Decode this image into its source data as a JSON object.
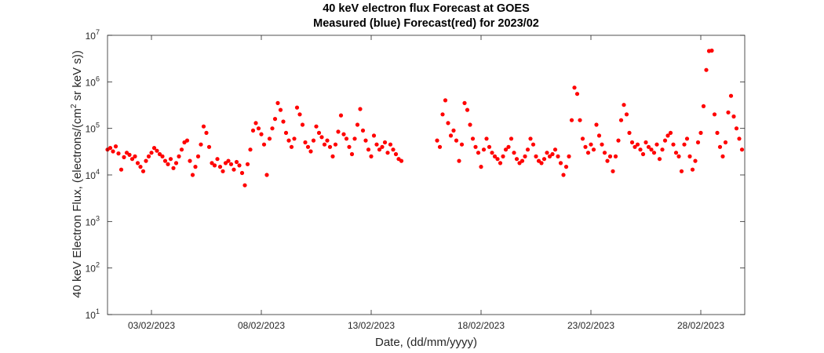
{
  "chart_data": {
    "type": "scatter",
    "title": "40 keV electron flux Forecast at GOES",
    "subtitle": "Measured (blue) Forecast(red) for 2023/02",
    "xlabel": "Date, (dd/mm/yyyy)",
    "ylabel_main": "40 keV Electron Flux, (electrons/(cm",
    "ylabel_sup": "2",
    "ylabel_end": " sr keV s))",
    "y_scale": "log",
    "ylim": [
      10,
      10000000
    ],
    "xlim": [
      "2023-02-01",
      "2023-03-02"
    ],
    "grid": false,
    "x_ticks": [
      {
        "date": "2023-02-03",
        "label": "03/02/2023"
      },
      {
        "date": "2023-02-08",
        "label": "08/02/2023"
      },
      {
        "date": "2023-02-13",
        "label": "13/02/2023"
      },
      {
        "date": "2023-02-18",
        "label": "18/02/2023"
      },
      {
        "date": "2023-02-23",
        "label": "23/02/2023"
      },
      {
        "date": "2023-02-28",
        "label": "28/02/2023"
      }
    ],
    "y_ticks": [
      {
        "value": 10,
        "base": "10",
        "exp": "1"
      },
      {
        "value": 100,
        "base": "10",
        "exp": "2"
      },
      {
        "value": 1000,
        "base": "10",
        "exp": "3"
      },
      {
        "value": 10000,
        "base": "10",
        "exp": "4"
      },
      {
        "value": 100000,
        "base": "10",
        "exp": "5"
      },
      {
        "value": 1000000,
        "base": "10",
        "exp": "6"
      },
      {
        "value": 10000000,
        "base": "10",
        "exp": "7"
      }
    ],
    "series": [
      {
        "color": "#ff0000",
        "points": [
          [
            "2023-02-01 00:00",
            35000
          ],
          [
            "2023-02-01 03:00",
            38000
          ],
          [
            "2023-02-01 06:00",
            32000
          ],
          [
            "2023-02-01 09:00",
            41000
          ],
          [
            "2023-02-01 12:00",
            29000
          ],
          [
            "2023-02-01 15:00",
            13000
          ],
          [
            "2023-02-01 18:00",
            24000
          ],
          [
            "2023-02-01 21:00",
            30000
          ],
          [
            "2023-02-02 00:00",
            27000
          ],
          [
            "2023-02-02 03:00",
            22000
          ],
          [
            "2023-02-02 06:00",
            25000
          ],
          [
            "2023-02-02 09:00",
            18000
          ],
          [
            "2023-02-02 12:00",
            15000
          ],
          [
            "2023-02-02 15:00",
            12000
          ],
          [
            "2023-02-02 18:00",
            20000
          ],
          [
            "2023-02-02 21:00",
            25000
          ],
          [
            "2023-02-03 00:00",
            30000
          ],
          [
            "2023-02-03 03:00",
            38000
          ],
          [
            "2023-02-03 06:00",
            33000
          ],
          [
            "2023-02-03 09:00",
            28000
          ],
          [
            "2023-02-03 12:00",
            25000
          ],
          [
            "2023-02-03 15:00",
            20000
          ],
          [
            "2023-02-03 18:00",
            17000
          ],
          [
            "2023-02-03 21:00",
            22000
          ],
          [
            "2023-02-04 00:00",
            14000
          ],
          [
            "2023-02-04 03:00",
            18000
          ],
          [
            "2023-02-04 06:00",
            25000
          ],
          [
            "2023-02-04 09:00",
            35000
          ],
          [
            "2023-02-04 12:00",
            50000
          ],
          [
            "2023-02-04 15:00",
            55000
          ],
          [
            "2023-02-04 18:00",
            20000
          ],
          [
            "2023-02-04 21:00",
            10000
          ],
          [
            "2023-02-05 00:00",
            15000
          ],
          [
            "2023-02-05 03:00",
            25000
          ],
          [
            "2023-02-05 06:00",
            45000
          ],
          [
            "2023-02-05 09:00",
            110000
          ],
          [
            "2023-02-05 12:00",
            80000
          ],
          [
            "2023-02-05 15:00",
            40000
          ],
          [
            "2023-02-05 18:00",
            18000
          ],
          [
            "2023-02-05 21:00",
            16000
          ],
          [
            "2023-02-06 00:00",
            22000
          ],
          [
            "2023-02-06 03:00",
            15000
          ],
          [
            "2023-02-06 06:00",
            12000
          ],
          [
            "2023-02-06 09:00",
            18000
          ],
          [
            "2023-02-06 12:00",
            20000
          ],
          [
            "2023-02-06 15:00",
            17000
          ],
          [
            "2023-02-06 18:00",
            13000
          ],
          [
            "2023-02-06 21:00",
            19000
          ],
          [
            "2023-02-07 00:00",
            16000
          ],
          [
            "2023-02-07 03:00",
            11000
          ],
          [
            "2023-02-07 06:00",
            6000
          ],
          [
            "2023-02-07 09:00",
            17000
          ],
          [
            "2023-02-07 12:00",
            35000
          ],
          [
            "2023-02-07 15:00",
            90000
          ],
          [
            "2023-02-07 18:00",
            130000
          ],
          [
            "2023-02-07 21:00",
            100000
          ],
          [
            "2023-02-08 00:00",
            75000
          ],
          [
            "2023-02-08 03:00",
            45000
          ],
          [
            "2023-02-08 06:00",
            10000
          ],
          [
            "2023-02-08 09:00",
            60000
          ],
          [
            "2023-02-08 12:00",
            100000
          ],
          [
            "2023-02-08 15:00",
            160000
          ],
          [
            "2023-02-08 18:00",
            350000
          ],
          [
            "2023-02-08 21:00",
            250000
          ],
          [
            "2023-02-09 00:00",
            140000
          ],
          [
            "2023-02-09 03:00",
            80000
          ],
          [
            "2023-02-09 06:00",
            55000
          ],
          [
            "2023-02-09 09:00",
            40000
          ],
          [
            "2023-02-09 12:00",
            60000
          ],
          [
            "2023-02-09 15:00",
            280000
          ],
          [
            "2023-02-09 18:00",
            200000
          ],
          [
            "2023-02-09 21:00",
            120000
          ],
          [
            "2023-02-10 00:00",
            50000
          ],
          [
            "2023-02-10 03:00",
            40000
          ],
          [
            "2023-02-10 06:00",
            32000
          ],
          [
            "2023-02-10 09:00",
            55000
          ],
          [
            "2023-02-10 12:00",
            110000
          ],
          [
            "2023-02-10 15:00",
            80000
          ],
          [
            "2023-02-10 18:00",
            65000
          ],
          [
            "2023-02-10 21:00",
            45000
          ],
          [
            "2023-02-11 00:00",
            55000
          ],
          [
            "2023-02-11 03:00",
            40000
          ],
          [
            "2023-02-11 06:00",
            25000
          ],
          [
            "2023-02-11 09:00",
            45000
          ],
          [
            "2023-02-11 12:00",
            85000
          ],
          [
            "2023-02-11 15:00",
            190000
          ],
          [
            "2023-02-11 18:00",
            75000
          ],
          [
            "2023-02-11 21:00",
            60000
          ],
          [
            "2023-02-12 00:00",
            40000
          ],
          [
            "2023-02-12 03:00",
            28000
          ],
          [
            "2023-02-12 06:00",
            60000
          ],
          [
            "2023-02-12 09:00",
            120000
          ],
          [
            "2023-02-12 12:00",
            260000
          ],
          [
            "2023-02-12 15:00",
            90000
          ],
          [
            "2023-02-12 18:00",
            55000
          ],
          [
            "2023-02-12 21:00",
            35000
          ],
          [
            "2023-02-13 00:00",
            25000
          ],
          [
            "2023-02-13 03:00",
            70000
          ],
          [
            "2023-02-13 06:00",
            45000
          ],
          [
            "2023-02-13 09:00",
            35000
          ],
          [
            "2023-02-13 12:00",
            40000
          ],
          [
            "2023-02-13 15:00",
            50000
          ],
          [
            "2023-02-13 18:00",
            30000
          ],
          [
            "2023-02-13 21:00",
            45000
          ],
          [
            "2023-02-14 00:00",
            35000
          ],
          [
            "2023-02-14 03:00",
            28000
          ],
          [
            "2023-02-14 06:00",
            22000
          ],
          [
            "2023-02-14 09:00",
            20000
          ],
          [
            "2023-02-16 00:00",
            55000
          ],
          [
            "2023-02-16 03:00",
            40000
          ],
          [
            "2023-02-16 06:00",
            200000
          ],
          [
            "2023-02-16 09:00",
            400000
          ],
          [
            "2023-02-16 12:00",
            130000
          ],
          [
            "2023-02-16 15:00",
            70000
          ],
          [
            "2023-02-16 18:00",
            90000
          ],
          [
            "2023-02-16 21:00",
            55000
          ],
          [
            "2023-02-17 00:00",
            20000
          ],
          [
            "2023-02-17 03:00",
            45000
          ],
          [
            "2023-02-17 06:00",
            350000
          ],
          [
            "2023-02-17 09:00",
            250000
          ],
          [
            "2023-02-17 12:00",
            120000
          ],
          [
            "2023-02-17 15:00",
            60000
          ],
          [
            "2023-02-17 18:00",
            40000
          ],
          [
            "2023-02-17 21:00",
            30000
          ],
          [
            "2023-02-18 00:00",
            15000
          ],
          [
            "2023-02-18 03:00",
            35000
          ],
          [
            "2023-02-18 06:00",
            60000
          ],
          [
            "2023-02-18 09:00",
            40000
          ],
          [
            "2023-02-18 12:00",
            30000
          ],
          [
            "2023-02-18 15:00",
            25000
          ],
          [
            "2023-02-18 18:00",
            22000
          ],
          [
            "2023-02-18 21:00",
            18000
          ],
          [
            "2023-02-19 00:00",
            25000
          ],
          [
            "2023-02-19 03:00",
            35000
          ],
          [
            "2023-02-19 06:00",
            40000
          ],
          [
            "2023-02-19 09:00",
            60000
          ],
          [
            "2023-02-19 12:00",
            30000
          ],
          [
            "2023-02-19 15:00",
            22000
          ],
          [
            "2023-02-19 18:00",
            18000
          ],
          [
            "2023-02-19 21:00",
            20000
          ],
          [
            "2023-02-20 00:00",
            25000
          ],
          [
            "2023-02-20 03:00",
            35000
          ],
          [
            "2023-02-20 06:00",
            60000
          ],
          [
            "2023-02-20 09:00",
            45000
          ],
          [
            "2023-02-20 12:00",
            25000
          ],
          [
            "2023-02-20 15:00",
            20000
          ],
          [
            "2023-02-20 18:00",
            18000
          ],
          [
            "2023-02-20 21:00",
            22000
          ],
          [
            "2023-02-21 00:00",
            30000
          ],
          [
            "2023-02-21 03:00",
            25000
          ],
          [
            "2023-02-21 06:00",
            28000
          ],
          [
            "2023-02-21 09:00",
            35000
          ],
          [
            "2023-02-21 12:00",
            25000
          ],
          [
            "2023-02-21 15:00",
            18000
          ],
          [
            "2023-02-21 18:00",
            10000
          ],
          [
            "2023-02-21 21:00",
            15000
          ],
          [
            "2023-02-22 00:00",
            25000
          ],
          [
            "2023-02-22 03:00",
            150000
          ],
          [
            "2023-02-22 06:00",
            750000
          ],
          [
            "2023-02-22 09:00",
            550000
          ],
          [
            "2023-02-22 12:00",
            150000
          ],
          [
            "2023-02-22 15:00",
            60000
          ],
          [
            "2023-02-22 18:00",
            40000
          ],
          [
            "2023-02-22 21:00",
            30000
          ],
          [
            "2023-02-23 00:00",
            45000
          ],
          [
            "2023-02-23 03:00",
            35000
          ],
          [
            "2023-02-23 06:00",
            120000
          ],
          [
            "2023-02-23 09:00",
            70000
          ],
          [
            "2023-02-23 12:00",
            45000
          ],
          [
            "2023-02-23 15:00",
            30000
          ],
          [
            "2023-02-23 18:00",
            20000
          ],
          [
            "2023-02-23 21:00",
            25000
          ],
          [
            "2023-02-24 00:00",
            12000
          ],
          [
            "2023-02-24 03:00",
            25000
          ],
          [
            "2023-02-24 06:00",
            55000
          ],
          [
            "2023-02-24 09:00",
            150000
          ],
          [
            "2023-02-24 12:00",
            320000
          ],
          [
            "2023-02-24 15:00",
            200000
          ],
          [
            "2023-02-24 18:00",
            80000
          ],
          [
            "2023-02-24 21:00",
            50000
          ],
          [
            "2023-02-25 00:00",
            40000
          ],
          [
            "2023-02-25 03:00",
            45000
          ],
          [
            "2023-02-25 06:00",
            35000
          ],
          [
            "2023-02-25 09:00",
            28000
          ],
          [
            "2023-02-25 12:00",
            50000
          ],
          [
            "2023-02-25 15:00",
            40000
          ],
          [
            "2023-02-25 18:00",
            35000
          ],
          [
            "2023-02-25 21:00",
            30000
          ],
          [
            "2023-02-26 00:00",
            45000
          ],
          [
            "2023-02-26 03:00",
            22000
          ],
          [
            "2023-02-26 06:00",
            35000
          ],
          [
            "2023-02-26 09:00",
            55000
          ],
          [
            "2023-02-26 12:00",
            70000
          ],
          [
            "2023-02-26 15:00",
            80000
          ],
          [
            "2023-02-26 18:00",
            45000
          ],
          [
            "2023-02-26 21:00",
            30000
          ],
          [
            "2023-02-27 00:00",
            25000
          ],
          [
            "2023-02-27 03:00",
            12000
          ],
          [
            "2023-02-27 06:00",
            45000
          ],
          [
            "2023-02-27 09:00",
            60000
          ],
          [
            "2023-02-27 12:00",
            25000
          ],
          [
            "2023-02-27 15:00",
            13000
          ],
          [
            "2023-02-27 18:00",
            20000
          ],
          [
            "2023-02-27 21:00",
            50000
          ],
          [
            "2023-02-28 00:00",
            80000
          ],
          [
            "2023-02-28 03:00",
            300000
          ],
          [
            "2023-02-28 06:00",
            1800000
          ],
          [
            "2023-02-28 09:00",
            4600000
          ],
          [
            "2023-02-28 12:00",
            4700000
          ],
          [
            "2023-02-28 15:00",
            200000
          ],
          [
            "2023-02-28 18:00",
            80000
          ],
          [
            "2023-02-28 21:00",
            40000
          ],
          [
            "2023-03-01 00:00",
            25000
          ],
          [
            "2023-03-01 03:00",
            50000
          ],
          [
            "2023-03-01 06:00",
            220000
          ],
          [
            "2023-03-01 09:00",
            500000
          ],
          [
            "2023-03-01 12:00",
            180000
          ],
          [
            "2023-03-01 15:00",
            100000
          ],
          [
            "2023-03-01 18:00",
            60000
          ],
          [
            "2023-03-01 21:00",
            35000
          ]
        ]
      }
    ]
  }
}
